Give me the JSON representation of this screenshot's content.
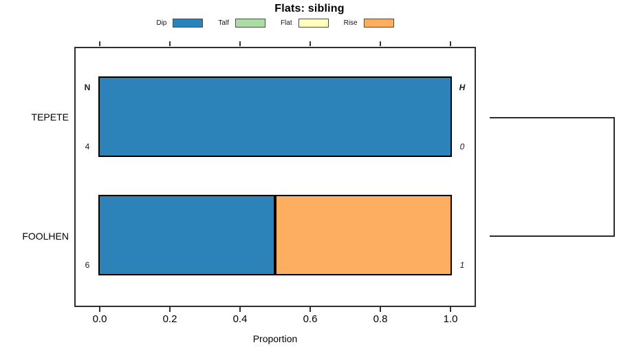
{
  "chart_data": {
    "type": "bar",
    "orientation": "horizontal",
    "stacked": true,
    "title": "Flats: sibling",
    "xlabel": "Proportion",
    "xlim": [
      0,
      1
    ],
    "xticks": [
      "0.0",
      "0.2",
      "0.4",
      "0.6",
      "0.8",
      "1.0"
    ],
    "grid": false,
    "legend_position": "top",
    "categories": [
      "TEPETE",
      "FOOLHEN"
    ],
    "series": [
      {
        "name": "Dip",
        "color": "#2b83ba",
        "values": [
          1.0,
          0.5
        ]
      },
      {
        "name": "Talf",
        "color": "#abdda4",
        "values": [
          0.0,
          0.0
        ]
      },
      {
        "name": "Flat",
        "color": "#ffffbf",
        "values": [
          0.0,
          0.0
        ]
      },
      {
        "name": "Rise",
        "color": "#fdae61",
        "values": [
          0.0,
          0.5
        ]
      }
    ],
    "annotations": {
      "left_header": "N",
      "right_header": "H",
      "left_values": [
        "4",
        "6"
      ],
      "right_values": [
        "0",
        "1"
      ]
    },
    "right_bracket": {
      "connects": [
        "TEPETE",
        "FOOLHEN"
      ]
    }
  }
}
